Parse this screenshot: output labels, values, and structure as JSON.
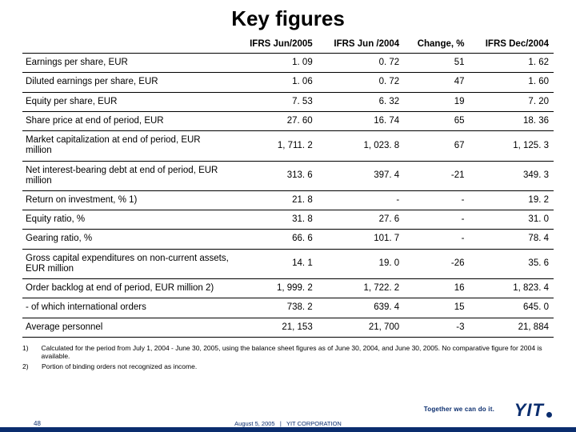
{
  "title": "Key figures",
  "columns": [
    "",
    "IFRS Jun/2005",
    "IFRS Jun /2004",
    "Change, %",
    "IFRS Dec/2004"
  ],
  "rows": [
    [
      "Earnings per share, EUR",
      "1. 09",
      "0. 72",
      "51",
      "1. 62"
    ],
    [
      "Diluted earnings per share, EUR",
      "1. 06",
      "0. 72",
      "47",
      "1. 60"
    ],
    [
      "Equity per share, EUR",
      "7. 53",
      "6. 32",
      "19",
      "7. 20"
    ],
    [
      "Share price at end of period, EUR",
      "27. 60",
      "16. 74",
      "65",
      "18. 36"
    ],
    [
      "Market capitalization at end of period, EUR million",
      "1, 711. 2",
      "1, 023. 8",
      "67",
      "1, 125. 3"
    ],
    [
      "Net interest-bearing debt at end of period, EUR million",
      "313. 6",
      "397. 4",
      "-21",
      "349. 3"
    ],
    [
      "Return on investment, % 1)",
      "21. 8",
      "-",
      "-",
      "19. 2"
    ],
    [
      "Equity ratio, %",
      "31. 8",
      "27. 6",
      "-",
      "31. 0"
    ],
    [
      "Gearing ratio, %",
      "66. 6",
      "101. 7",
      "-",
      "78. 4"
    ],
    [
      "Gross capital expenditures on non-current assets, EUR million",
      "14. 1",
      "19. 0",
      "-26",
      "35. 6"
    ],
    [
      "Order backlog at end of period, EUR million 2)",
      "1, 999. 2",
      "1, 722. 2",
      "16",
      "1, 823. 4"
    ],
    [
      "- of which international orders",
      "738. 2",
      "639. 4",
      "15",
      "645. 0"
    ],
    [
      "Average personnel",
      "21, 153",
      "21, 700",
      "-3",
      "21, 884"
    ]
  ],
  "footnotes": [
    {
      "n": "1)",
      "t": "Calculated for the period from July 1, 2004 - June 30, 2005, using the balance sheet figures as of June 30, 2004, and June 30, 2005. No comparative figure for 2004 is available."
    },
    {
      "n": "2)",
      "t": "Portion of binding orders not recognized as income."
    }
  ],
  "tagline": "Together we can do it.",
  "logo": {
    "y": "Y",
    "i": "I",
    "t": "T"
  },
  "footer": {
    "date": "August 5, 2005",
    "sep": "|",
    "org": "YIT CORPORATION"
  },
  "page": "48",
  "colors": {
    "brand": "#0a2d6e"
  }
}
